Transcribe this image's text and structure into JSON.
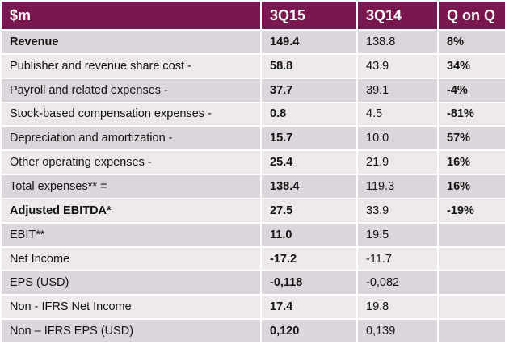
{
  "table": {
    "header": [
      "$m",
      "3Q15",
      "3Q14",
      "Q on Q"
    ],
    "rows": [
      [
        "Revenue",
        "149.4",
        "138.8",
        "8%"
      ],
      [
        "Publisher and revenue share cost -",
        "58.8",
        "43.9",
        "34%"
      ],
      [
        "Payroll and related expenses -",
        "37.7",
        "39.1",
        "-4%"
      ],
      [
        "Stock-based compensation expenses -",
        "0.8",
        "4.5",
        "-81%"
      ],
      [
        "Depreciation and amortization -",
        "15.7",
        "10.0",
        "57%"
      ],
      [
        "Other operating expenses -",
        "25.4",
        "21.9",
        "16%"
      ],
      [
        "Total expenses** =",
        "138.4",
        "119.3",
        "16%"
      ],
      [
        "Adjusted EBITDA*",
        "27.5",
        "33.9",
        "-19%"
      ],
      [
        "EBIT**",
        "11.0",
        "19.5",
        null
      ],
      [
        "Net Income",
        "-17.2",
        "-11.7",
        null
      ],
      [
        "EPS (USD)",
        "-0,118",
        "-0,082",
        null
      ],
      [
        "Non - IFRS Net Income",
        "17.4",
        "19.8",
        null
      ],
      [
        "Non – IFRS EPS (USD)",
        "0,120",
        "0,139",
        null
      ]
    ]
  }
}
